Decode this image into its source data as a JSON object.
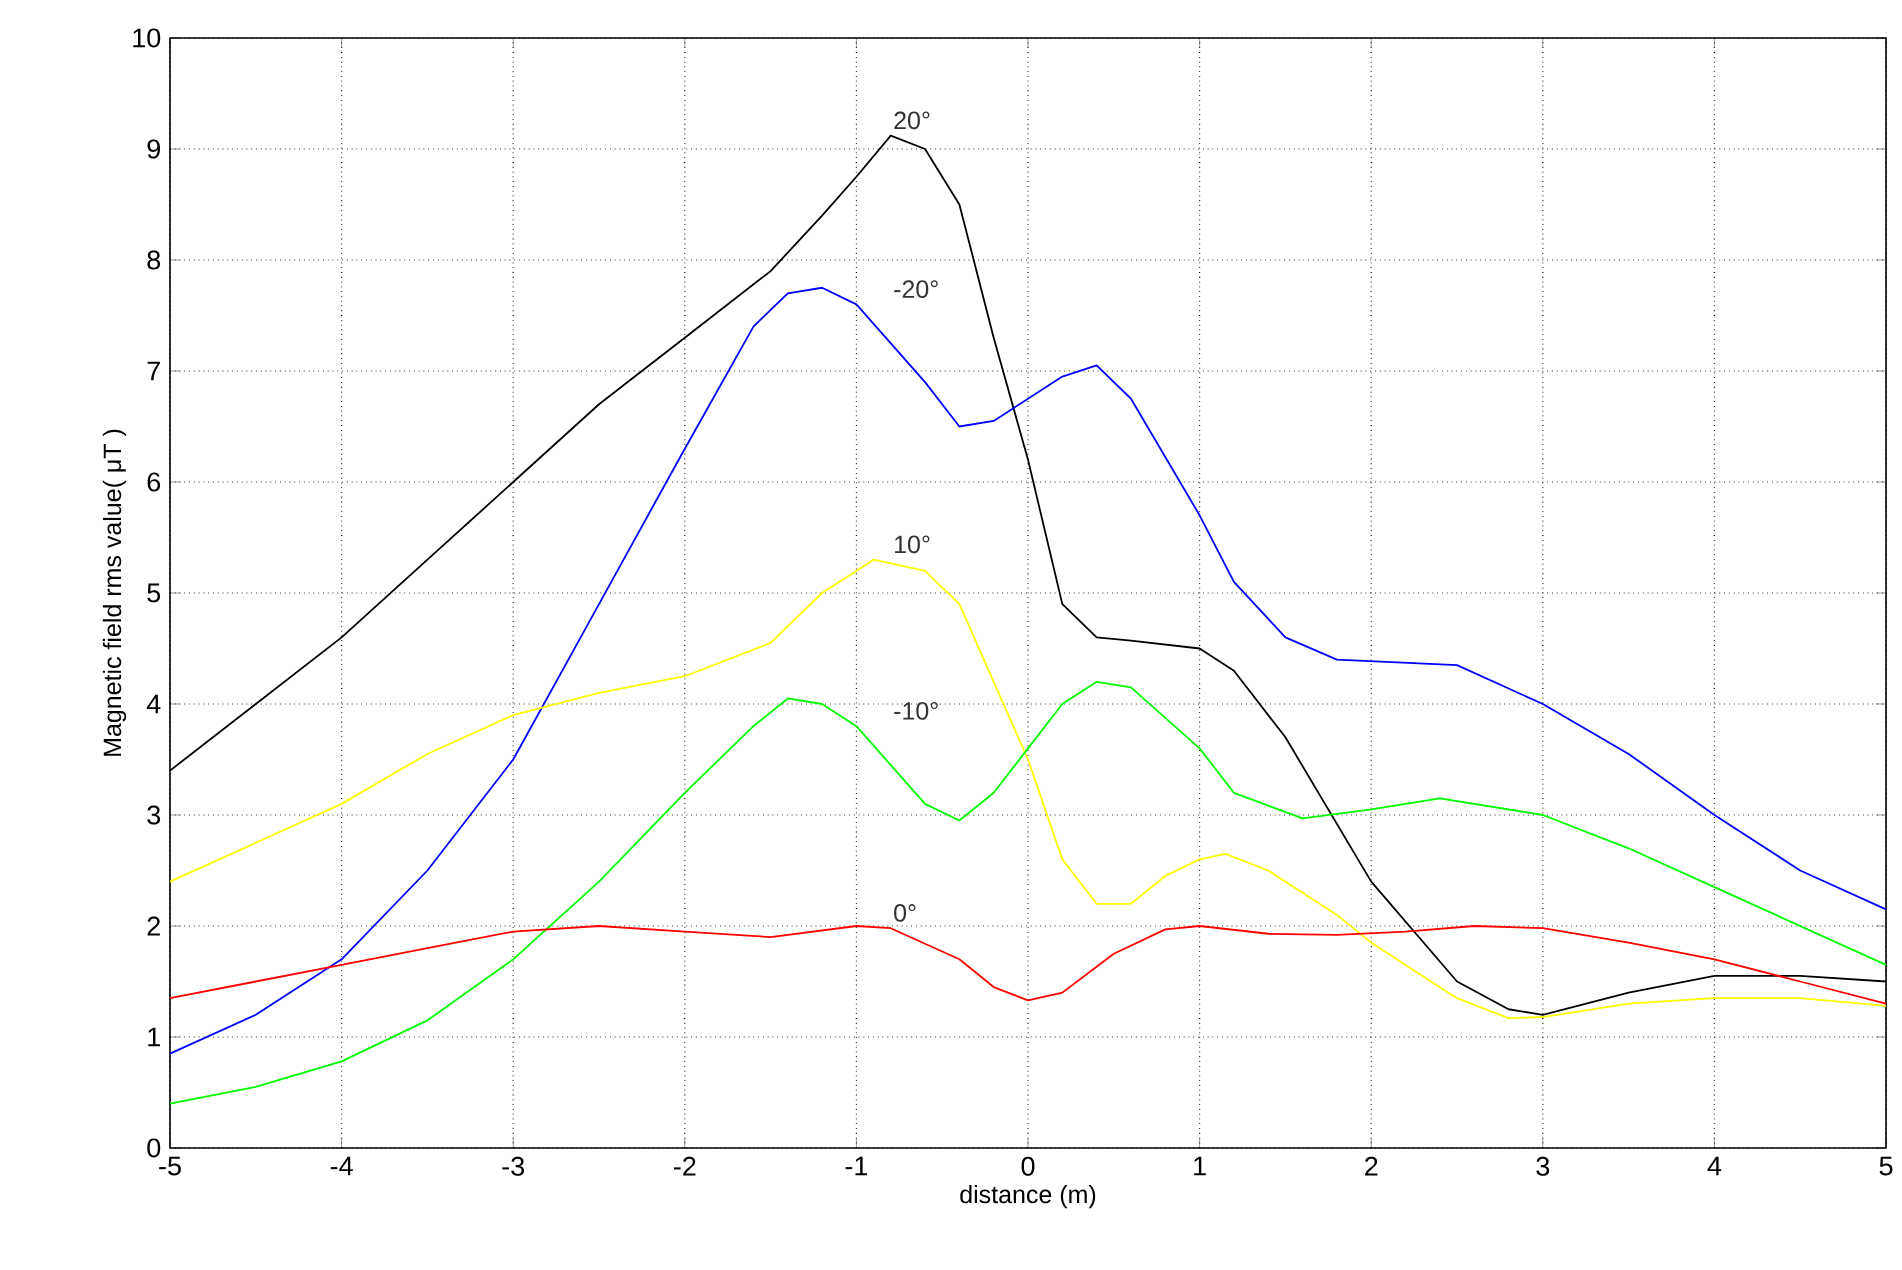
{
  "chart_data": {
    "type": "line",
    "xlabel": "distance (m)",
    "ylabel": "Magnetic field rms value( μT )",
    "xlim": [
      -5,
      5
    ],
    "ylim": [
      0,
      10
    ],
    "xticks": [
      -5,
      -4,
      -3,
      -2,
      -1,
      0,
      1,
      2,
      3,
      4,
      5
    ],
    "yticks": [
      0,
      1,
      2,
      3,
      4,
      5,
      6,
      7,
      8,
      9,
      10
    ],
    "grid": true,
    "series": [
      {
        "name": "20°",
        "color": "#000000",
        "x": [
          -5,
          -4.5,
          -4,
          -3.5,
          -3,
          -2.5,
          -2,
          -1.5,
          -1.2,
          -1,
          -0.8,
          -0.6,
          -0.4,
          -0.2,
          0,
          0.2,
          0.4,
          0.6,
          1,
          1.2,
          1.5,
          2,
          2.5,
          2.8,
          3,
          3.5,
          4,
          4.5,
          5
        ],
        "values": [
          3.4,
          4.0,
          4.6,
          5.3,
          6.0,
          6.7,
          7.3,
          7.9,
          8.4,
          8.75,
          9.12,
          9.0,
          8.5,
          7.3,
          6.2,
          4.9,
          4.6,
          4.57,
          4.5,
          4.3,
          3.7,
          2.4,
          1.5,
          1.25,
          1.2,
          1.4,
          1.55,
          1.55,
          1.5
        ]
      },
      {
        "name": "-20°",
        "color": "#0000ff",
        "x": [
          -5,
          -4.5,
          -4,
          -3.5,
          -3,
          -2.5,
          -2,
          -1.6,
          -1.4,
          -1.2,
          -1,
          -0.6,
          -0.4,
          -0.2,
          0,
          0.2,
          0.4,
          0.6,
          1,
          1.2,
          1.5,
          1.8,
          2.5,
          3,
          3.5,
          4,
          4.5,
          5
        ],
        "values": [
          0.85,
          1.2,
          1.7,
          2.5,
          3.5,
          4.9,
          6.3,
          7.4,
          7.7,
          7.75,
          7.6,
          6.9,
          6.5,
          6.55,
          6.75,
          6.95,
          7.05,
          6.75,
          5.7,
          5.1,
          4.6,
          4.4,
          4.35,
          4.0,
          3.55,
          3.0,
          2.5,
          2.15
        ]
      },
      {
        "name": "10°",
        "color": "#ffff00",
        "x": [
          -5,
          -4.5,
          -4,
          -3.5,
          -3,
          -2.5,
          -2,
          -1.5,
          -1.2,
          -0.9,
          -0.6,
          -0.4,
          -0.2,
          0,
          0.2,
          0.4,
          0.6,
          0.8,
          1.0,
          1.15,
          1.4,
          1.8,
          2,
          2.5,
          2.8,
          3.0,
          3.5,
          4,
          4.5,
          5
        ],
        "values": [
          2.4,
          2.75,
          3.1,
          3.55,
          3.9,
          4.1,
          4.25,
          4.55,
          5.0,
          5.3,
          5.2,
          4.9,
          4.2,
          3.5,
          2.6,
          2.2,
          2.2,
          2.45,
          2.6,
          2.65,
          2.5,
          2.1,
          1.85,
          1.35,
          1.17,
          1.18,
          1.3,
          1.35,
          1.35,
          1.28
        ]
      },
      {
        "name": "-10°",
        "color": "#00ff00",
        "x": [
          -5,
          -4.5,
          -4,
          -3.5,
          -3,
          -2.5,
          -2,
          -1.6,
          -1.4,
          -1.2,
          -1,
          -0.6,
          -0.4,
          -0.2,
          0,
          0.2,
          0.4,
          0.6,
          1,
          1.2,
          1.6,
          2,
          2.4,
          3,
          3.5,
          4,
          4.5,
          5
        ],
        "values": [
          0.4,
          0.55,
          0.78,
          1.15,
          1.7,
          2.4,
          3.2,
          3.8,
          4.05,
          4.0,
          3.8,
          3.1,
          2.95,
          3.2,
          3.6,
          4.0,
          4.2,
          4.15,
          3.6,
          3.2,
          2.97,
          3.05,
          3.15,
          3.0,
          2.7,
          2.35,
          2.0,
          1.65
        ]
      },
      {
        "name": "0°",
        "color": "#ff0000",
        "x": [
          -5,
          -4.5,
          -4,
          -3.5,
          -3,
          -2.5,
          -2,
          -1.5,
          -1,
          -0.8,
          -0.4,
          -0.2,
          0,
          0.2,
          0.5,
          0.8,
          1,
          1.4,
          1.8,
          2.2,
          2.6,
          3,
          3.5,
          4,
          4.5,
          5
        ],
        "values": [
          1.35,
          1.5,
          1.65,
          1.8,
          1.95,
          2.0,
          1.95,
          1.9,
          2.0,
          1.98,
          1.7,
          1.45,
          1.33,
          1.4,
          1.75,
          1.97,
          2.0,
          1.93,
          1.92,
          1.95,
          2.0,
          1.98,
          1.85,
          1.7,
          1.5,
          1.3
        ]
      }
    ]
  }
}
